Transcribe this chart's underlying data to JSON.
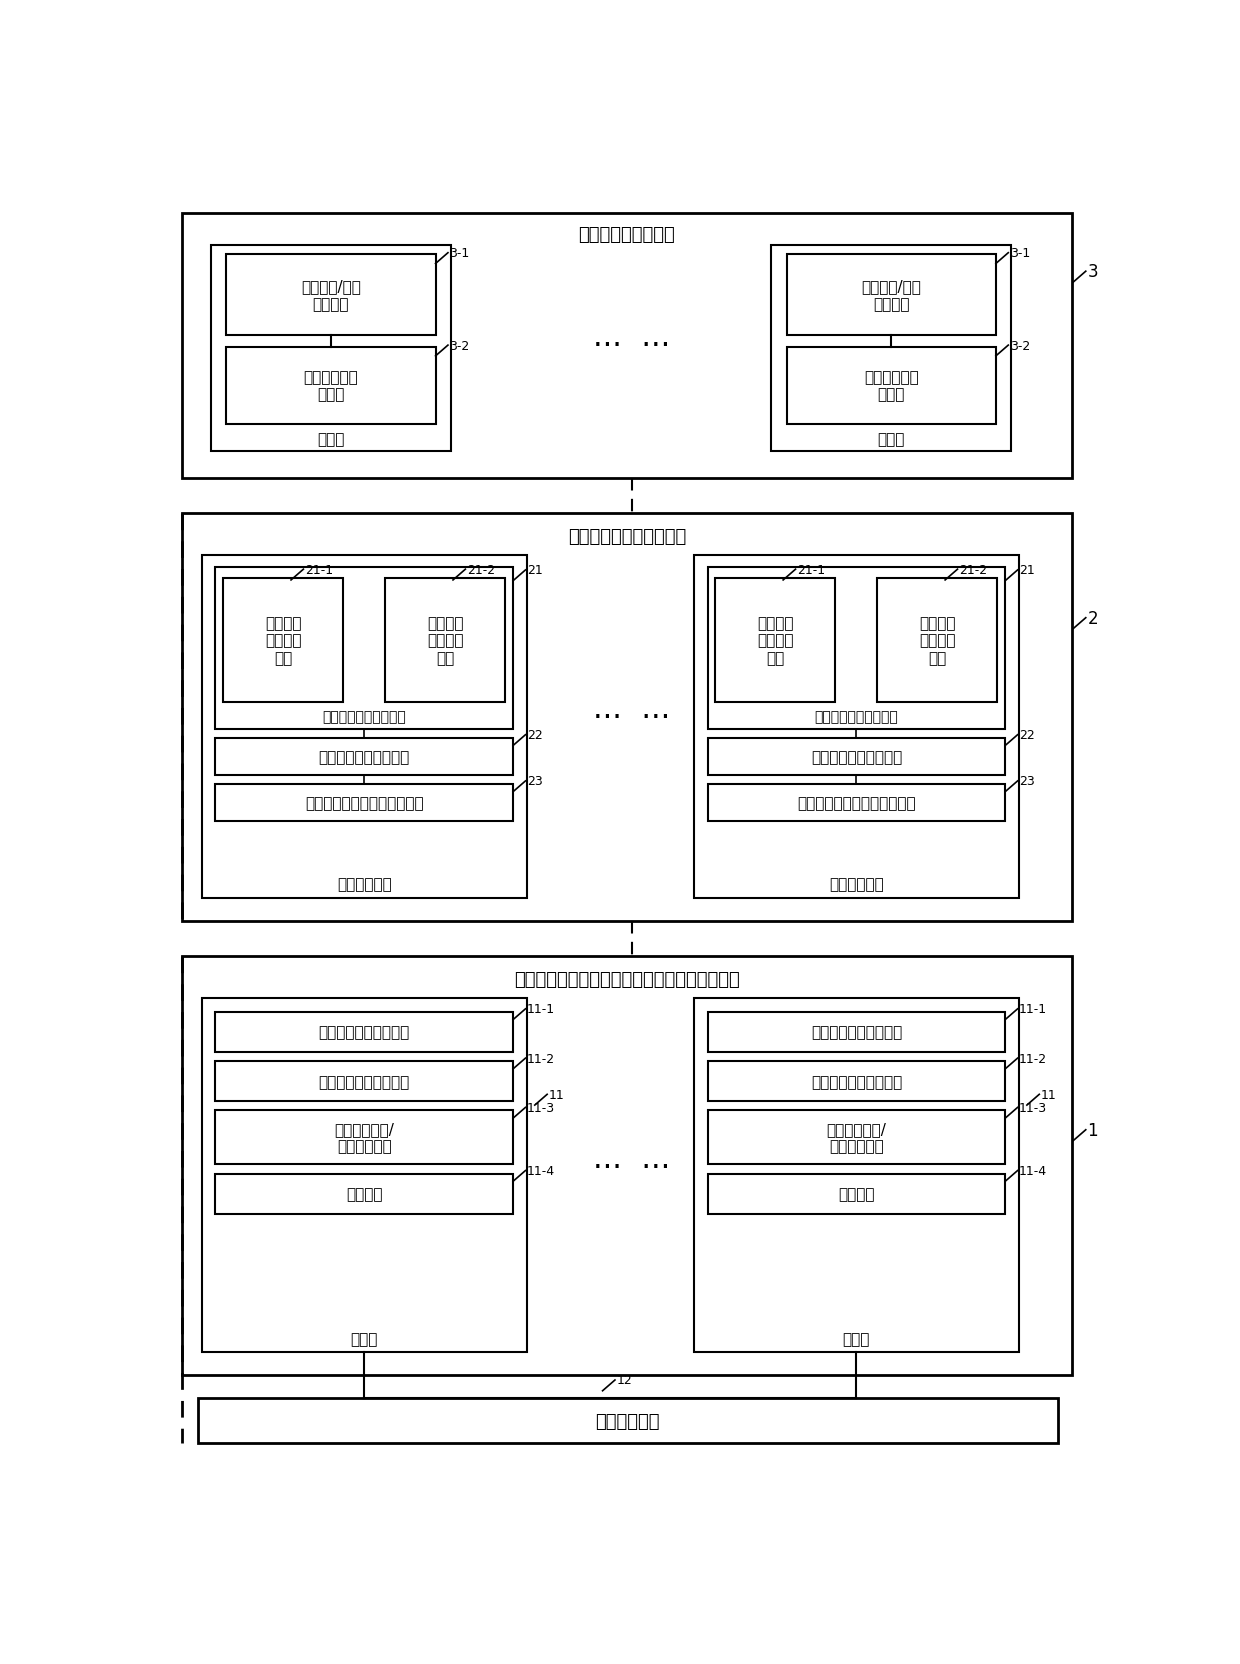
{
  "bg_color": "#ffffff",
  "figsize": [
    12.4,
    16.65
  ],
  "dpi": 100,
  "section3_title": "无人机空地防控系统",
  "section3_label": "3",
  "uav_box_title": "无人机",
  "uav_item31_label": "3-1",
  "uav_item31_text": "空基图像/视频\n采集设备",
  "uav_item32_label": "3-2",
  "uav_item32_text": "空基传输及控\n制单元",
  "section2_title": "地面机动雷达侦察车系统",
  "section2_label": "2",
  "ground_box_title": "地面侦察车辆",
  "ground_item21_label": "21",
  "ground_item211_label": "21-1",
  "ground_item211_text": "第二红外\n周扫成像\n单元",
  "ground_item212_label": "21-2",
  "ground_item212_text": "第二运动\n目标检测\n单元",
  "ground_radar_text": "红外全景成像预警雷达",
  "ground_item22_label": "22",
  "ground_item22_text": "昼夜光电视频监控设备",
  "ground_item23_label": "23",
  "ground_item23_text": "无线通信传输及控制单元设备",
  "section1_title": "广域、油田红外全景成像雷达侦察指挥控制系统",
  "section1_label": "1",
  "tower_box_title": "监控塔",
  "tower_item11_label": "11-1",
  "tower_item11_text": "第一红外周扫成像单元",
  "tower_item12_label": "11-2",
  "tower_item12_text": "第一运动目标检测单元",
  "tower_item13_label": "11-3",
  "tower_item13_text": "远程局部图像/\n视频采集单元",
  "tower_item14_label": "11-4",
  "tower_item14_text": "发送单元",
  "tower_group_label": "11",
  "monitor_label": "12",
  "monitor_text": "监控中心单元",
  "dots_text": "···  ···"
}
